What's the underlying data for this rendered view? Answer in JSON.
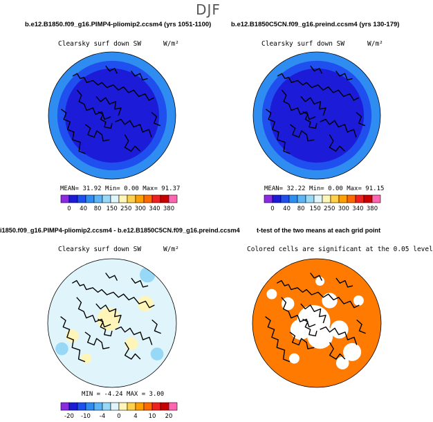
{
  "figure_title": "DJF",
  "panels": [
    {
      "title": "b.e12.B1850.f09_g16.PIMP4-pliomip2.ccsm4 (yrs 1051-1100)",
      "variable": "Clearsky surf down SW",
      "units": "W/m²",
      "stats": "MEAN=   31.92  Min=    0.00  Max=   91.37"
    },
    {
      "title": "b.e12.B1850C5CN.f09_g16.preind.ccsm4 (yrs 130-179)",
      "variable": "Clearsky surf down SW",
      "units": "W/m²",
      "stats": "MEAN=   32.22  Min=    0.00  Max=   91.15"
    },
    {
      "title": "i1850.f09_g16.PIMP4-pliomip2.ccsm4 - b.e12.B1850C5CN.f09_g16.preind.ccsm4",
      "variable": "Clearsky surf down SW",
      "units": "W/m²",
      "stats": "MIN =  -4.24  MAX =   3.00"
    },
    {
      "title": "t-test of the two means at each grid point",
      "variable": "Colored cells are significant at the 0.05 level"
    }
  ],
  "colorbar_top": {
    "labels": [
      "0",
      "40",
      "80",
      "150",
      "250",
      "300",
      "340",
      "380"
    ],
    "colors": [
      "#8a2be2",
      "#1b1bd8",
      "#1f4fee",
      "#2f8cf0",
      "#5cb3f5",
      "#98d8f7",
      "#dff4fb",
      "#fff5b8",
      "#ffd04a",
      "#ffa000",
      "#ff6a00",
      "#f02020",
      "#c80000",
      "#ff66b0"
    ]
  },
  "colorbar_bottom": {
    "labels": [
      "-20",
      "-10",
      "-4",
      "0",
      "4",
      "10",
      "20"
    ],
    "colors": [
      "#8a2be2",
      "#1b1bd8",
      "#1f4fee",
      "#2f8cf0",
      "#5cb3f5",
      "#98d8f7",
      "#dff4fb",
      "#fff5b8",
      "#ffd04a",
      "#ffa000",
      "#ff6a00",
      "#f02020",
      "#c80000",
      "#ff66b0"
    ]
  },
  "chart_data": [
    {
      "type": "heatmap",
      "title": "b.e12.B1850.f09_g16.PIMP4-pliomip2.ccsm4 (yrs 1051-1100)",
      "variable": "Clearsky surf down SW",
      "units": "W/m²",
      "mean": 31.92,
      "min": 0.0,
      "max": 91.37,
      "season": "DJF",
      "projection": "north polar stereographic"
    },
    {
      "type": "heatmap",
      "title": "b.e12.B1850C5CN.f09_g16.preind.ccsm4 (yrs 130-179)",
      "variable": "Clearsky surf down SW",
      "units": "W/m²",
      "mean": 32.22,
      "min": 0.0,
      "max": 91.15,
      "season": "DJF",
      "projection": "north polar stereographic"
    },
    {
      "type": "heatmap",
      "title": "i1850.f09_g16.PIMP4-pliomip2.ccsm4 - b.e12.B1850C5CN.f09_g16.preind.ccsm4",
      "variable": "Clearsky surf down SW",
      "units": "W/m²",
      "min": -4.24,
      "max": 3.0,
      "season": "DJF",
      "projection": "north polar stereographic"
    },
    {
      "type": "heatmap",
      "title": "t-test of the two means at each grid point",
      "variable": "Colored cells are significant at the 0.05 level",
      "projection": "north polar stereographic"
    }
  ]
}
